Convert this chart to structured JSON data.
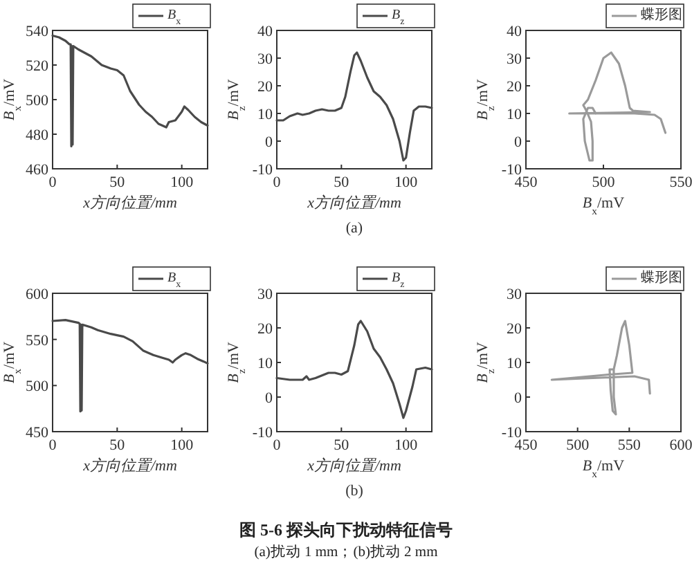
{
  "chart_data": [
    {
      "type": "line",
      "xlabel": "x方向位置/mm",
      "ylabel": "B$_{x}$/mV",
      "xlim": [
        0,
        120
      ],
      "ylim": [
        460,
        540
      ],
      "xticks": [
        0,
        50,
        100
      ],
      "yticks": [
        460,
        480,
        500,
        520,
        540
      ],
      "legend": "top right",
      "x": [
        0,
        5,
        10,
        13,
        14,
        14.5,
        15,
        15.5,
        16,
        20,
        25,
        30,
        38,
        45,
        50,
        55,
        60,
        67,
        72,
        77,
        82,
        85,
        88,
        90,
        95,
        100,
        102,
        105,
        110,
        115,
        120
      ],
      "series": [
        {
          "name": "B$_{x}$",
          "color": "#4a4a4a",
          "values": [
            537,
            536,
            534,
            532,
            532,
            473,
            531,
            474,
            531,
            529,
            527,
            525,
            520,
            518,
            517,
            514,
            505,
            497,
            493,
            490,
            486,
            485,
            484,
            487,
            488,
            493,
            496,
            494,
            490,
            487,
            485
          ]
        }
      ]
    },
    {
      "type": "line",
      "xlabel": "x方向位置/mm",
      "ylabel": "B$_{z}$/mV",
      "xlim": [
        0,
        120
      ],
      "ylim": [
        -10,
        40
      ],
      "xticks": [
        0,
        50,
        100
      ],
      "yticks": [
        -10,
        0,
        10,
        20,
        30,
        40
      ],
      "legend": "top right",
      "annotations": [
        "(a)"
      ],
      "x": [
        0,
        5,
        10,
        16,
        20,
        25,
        30,
        35,
        40,
        45,
        50,
        53,
        57,
        60,
        62,
        65,
        70,
        75,
        80,
        85,
        90,
        95,
        98,
        100,
        103,
        106,
        110,
        115,
        120
      ],
      "series": [
        {
          "name": "B$_{z}$",
          "color": "#4a4a4a",
          "values": [
            7.5,
            7.5,
            9,
            10,
            9.5,
            10,
            11,
            11.5,
            11,
            11,
            12,
            16,
            25,
            31,
            32,
            29,
            23,
            18,
            16,
            13,
            8,
            0,
            -7,
            -6,
            3,
            11,
            12.5,
            12.5,
            12
          ]
        }
      ]
    },
    {
      "type": "line",
      "xlabel": "B$_{x}$/mV",
      "ylabel": "B$_{z}$/mV",
      "xlim": [
        450,
        550
      ],
      "ylim": [
        -10,
        40
      ],
      "xticks": [
        450,
        500,
        550
      ],
      "yticks": [
        -10,
        0,
        10,
        20,
        30,
        40
      ],
      "legend": "top right",
      "series": [
        {
          "name": "蝶形图",
          "color": "#9a9a9a",
          "x": [
            540,
            537,
            533,
            520,
            478,
            530,
            519,
            517,
            514,
            510,
            505,
            500,
            495,
            490,
            487,
            489,
            492,
            493,
            493,
            491,
            488,
            487,
            490,
            493,
            495
          ],
          "values": [
            3,
            8,
            9.5,
            10,
            10,
            10.5,
            11,
            12,
            20,
            28,
            32,
            30,
            22,
            15,
            13,
            11,
            7,
            0,
            -7,
            -7,
            0,
            8,
            12,
            12,
            10
          ]
        }
      ]
    },
    {
      "type": "line",
      "xlabel": "x方向位置/mm",
      "ylabel": "B$_{x}$/mV",
      "xlim": [
        0,
        120
      ],
      "ylim": [
        450,
        600
      ],
      "xticks": [
        0,
        50,
        100
      ],
      "yticks": [
        450,
        500,
        550,
        600
      ],
      "legend": "top right",
      "x": [
        0,
        10,
        20,
        21,
        21.5,
        22,
        22.5,
        23,
        30,
        35,
        45,
        55,
        62,
        70,
        78,
        85,
        90,
        93,
        95,
        100,
        103,
        107,
        112,
        117,
        120
      ],
      "series": [
        {
          "name": "B$_{x}$",
          "color": "#4a4a4a",
          "values": [
            570,
            571,
            568,
            567,
            472,
            566,
            473,
            566,
            563,
            560,
            556,
            553,
            548,
            538,
            533,
            530,
            528,
            525,
            528,
            533,
            535,
            533,
            529,
            526,
            524
          ]
        }
      ]
    },
    {
      "type": "line",
      "xlabel": "x方向位置/mm",
      "ylabel": "B$_{z}$/mV",
      "xlim": [
        0,
        120
      ],
      "ylim": [
        -10,
        30
      ],
      "xticks": [
        0,
        50,
        100
      ],
      "yticks": [
        -10,
        0,
        10,
        20,
        30
      ],
      "legend": "top right",
      "annotations": [
        "(b)",
        "图 5-6   探头向下扰动特征信号",
        "(a)扰动 1 mm；(b)扰动 2 mm"
      ],
      "x": [
        0,
        10,
        20,
        23,
        25,
        30,
        40,
        45,
        50,
        55,
        60,
        63,
        65,
        70,
        75,
        80,
        85,
        90,
        95,
        98,
        100,
        105,
        108,
        115,
        120
      ],
      "series": [
        {
          "name": "B$_{z}$",
          "color": "#4a4a4a",
          "values": [
            5.5,
            5,
            5,
            6,
            5,
            5.5,
            7,
            7,
            6.5,
            7.5,
            15,
            21,
            22,
            19,
            14,
            11.5,
            8,
            4,
            -2,
            -6,
            -4,
            3,
            8,
            8.5,
            8
          ]
        }
      ]
    },
    {
      "type": "line",
      "xlabel": "B$_{x}$/mV",
      "ylabel": "B$_{z}$/mV",
      "xlim": [
        450,
        600
      ],
      "ylim": [
        -10,
        30
      ],
      "xticks": [
        450,
        500,
        550,
        600
      ],
      "yticks": [
        -10,
        0,
        10,
        20,
        30
      ],
      "legend": "top right",
      "series": [
        {
          "name": "蝶形图",
          "color": "#9a9a9a",
          "x": [
            570,
            569,
            555,
            475,
            530,
            553,
            550,
            546,
            543,
            538,
            535,
            535,
            537,
            534,
            532,
            531,
            534
          ],
          "values": [
            1,
            5,
            6,
            5,
            6.5,
            7,
            15,
            22,
            20,
            12,
            8,
            0,
            -5,
            -4,
            2,
            8,
            8
          ]
        }
      ]
    }
  ]
}
